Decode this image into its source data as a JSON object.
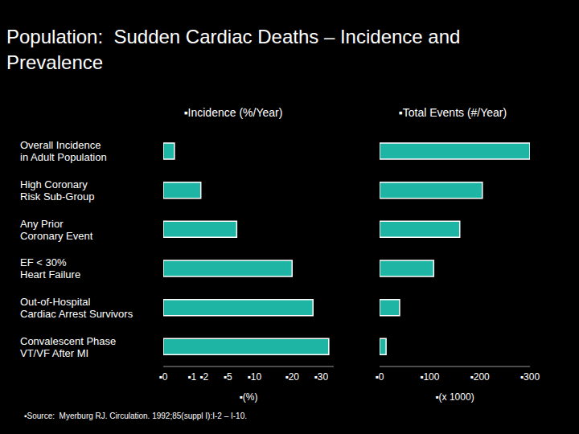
{
  "title": "Population:  Sudden Cardiac Deaths – Incidence and Prevalence",
  "note": "▪Source:  Myerburg RJ. Circulation. 1992;85(suppl I):I-2 – I-10.",
  "chart_data": [
    {
      "type": "bar",
      "orientation": "horizontal",
      "title": "▪Incidence (%/Year)",
      "x_label": "▪(%)",
      "categories": [
        "Overall Incidence\nin Adult Population",
        "High Coronary\nRisk Sub-Group",
        "Any Prior\nCoronary Event",
        "EF < 30%\nHeart Failure",
        "Out-of-Hospital\nCardiac Arrest Survivors",
        "Convalescent Phase\nVT/VF After MI"
      ],
      "values": [
        0.15,
        1.7,
        6.5,
        20,
        27,
        33
      ],
      "color": "#1fb5a5",
      "xlim": [
        0,
        35
      ],
      "xticks": [
        {
          "value": 0,
          "label": "▪0"
        },
        {
          "value": 1,
          "label": "▪1"
        },
        {
          "value": 2,
          "label": "▪2"
        },
        {
          "value": 5,
          "label": "▪5"
        },
        {
          "value": 10,
          "label": "▪10"
        },
        {
          "value": 20,
          "label": "▪20"
        },
        {
          "value": 30,
          "label": "▪30"
        }
      ],
      "grid": false
    },
    {
      "type": "bar",
      "orientation": "horizontal",
      "title": "▪Total Events (#/Year)",
      "x_label": "▪(x 1000)",
      "categories": [
        "Overall Incidence\nin Adult Population",
        "High Coronary\nRisk Sub-Group",
        "Any Prior\nCoronary Event",
        "EF < 30%\nHeart Failure",
        "Out-of-Hospital\nCardiac Arrest Survivors",
        "Convalescent Phase\nVT/VF After MI"
      ],
      "values": [
        300,
        205,
        160,
        108,
        40,
        13
      ],
      "color": "#1fb5a5",
      "xlim": [
        0,
        300
      ],
      "xticks": [
        {
          "value": 0,
          "label": "▪0"
        },
        {
          "value": 100,
          "label": "▪100"
        },
        {
          "value": 200,
          "label": "▪200"
        },
        {
          "value": 300,
          "label": "▪300"
        }
      ],
      "grid": false,
      "tick_labels": "x"
    }
  ]
}
